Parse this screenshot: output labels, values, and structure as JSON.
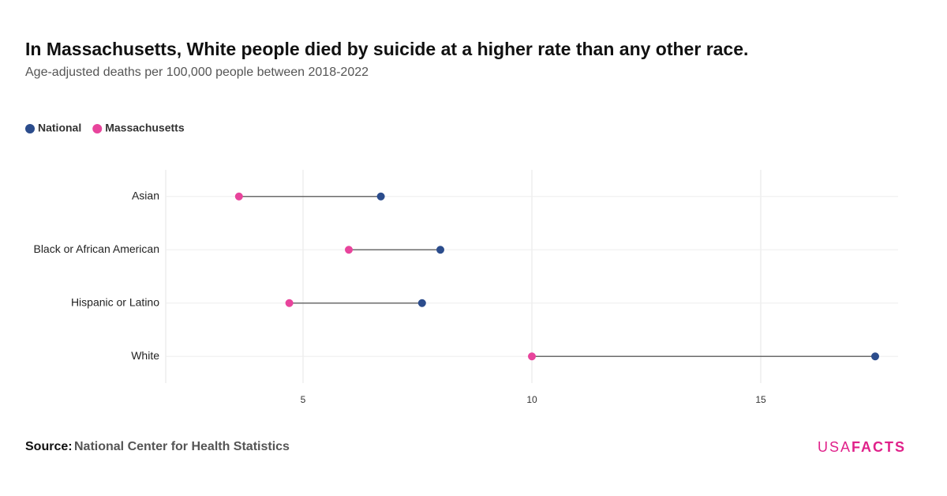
{
  "chart_data": {
    "type": "dumbbell",
    "title": "In Massachusetts, White people died by suicide at a higher rate than any other race.",
    "subtitle": "Age-adjusted deaths per 100,000 people between 2018-2022",
    "categories": [
      "Asian",
      "Black or African American",
      "Hispanic or Latino",
      "White"
    ],
    "series": [
      {
        "name": "National",
        "color": "#2b4c8c",
        "values": [
          6.7,
          8.0,
          7.6,
          17.5
        ]
      },
      {
        "name": "Massachusetts",
        "color": "#e8449c",
        "values": [
          3.6,
          6.0,
          4.7,
          10.0
        ]
      }
    ],
    "xlim": [
      2,
      18
    ],
    "xticks": [
      5,
      10,
      15
    ],
    "grid": true,
    "source_label": "Source:",
    "source": "National Center for Health Statistics",
    "logo": [
      "USA",
      "FACTS"
    ]
  }
}
